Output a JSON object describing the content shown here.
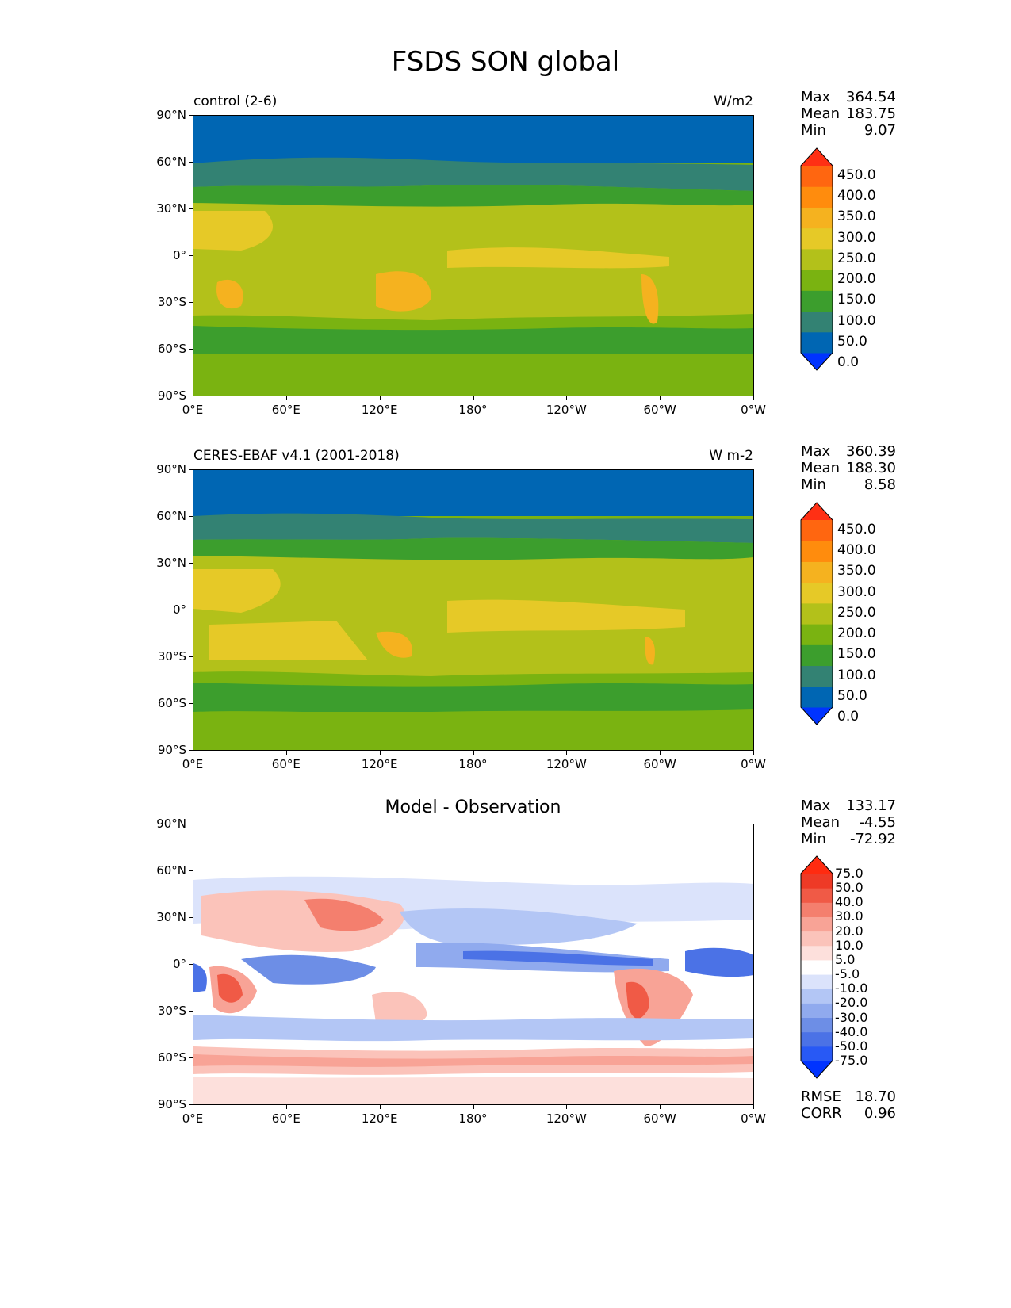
{
  "title": "FSDS SON global",
  "lat_ticks": [
    "90°N",
    "60°N",
    "30°N",
    "0°",
    "30°S",
    "60°S",
    "90°S"
  ],
  "lon_ticks": [
    "0°E",
    "60°E",
    "120°E",
    "180°",
    "120°W",
    "60°W",
    "0°W"
  ],
  "panels": [
    {
      "title_left": "control (2-6)",
      "title_right": "W/m2",
      "stats": [
        {
          "label": "Max",
          "value": "364.54"
        },
        {
          "label": "Mean",
          "value": "183.75"
        },
        {
          "label": "Min",
          "value": "9.07"
        }
      ],
      "colorbar_labels": [
        "450.0",
        "400.0",
        "350.0",
        "300.0",
        "250.0",
        "200.0",
        "150.0",
        "100.0",
        "50.0",
        "0.0"
      ]
    },
    {
      "title_left": "CERES-EBAF v4.1 (2001-2018)",
      "title_right": "W m-2",
      "stats": [
        {
          "label": "Max",
          "value": "360.39"
        },
        {
          "label": "Mean",
          "value": "188.30"
        },
        {
          "label": "Min",
          "value": "8.58"
        }
      ],
      "colorbar_labels": [
        "450.0",
        "400.0",
        "350.0",
        "300.0",
        "250.0",
        "200.0",
        "150.0",
        "100.0",
        "50.0",
        "0.0"
      ]
    },
    {
      "title_center": "Model - Observation",
      "stats": [
        {
          "label": "Max",
          "value": "133.17"
        },
        {
          "label": "Mean",
          "value": "-4.55"
        },
        {
          "label": "Min",
          "value": "-72.92"
        }
      ],
      "colorbar_labels": [
        "75.0",
        "50.0",
        "40.0",
        "30.0",
        "20.0",
        "10.0",
        "5.0",
        "-5.0",
        "-10.0",
        "-20.0",
        "-30.0",
        "-40.0",
        "-50.0",
        "-75.0"
      ],
      "metrics": [
        {
          "label": "RMSE",
          "value": "18.70"
        },
        {
          "label": "CORR",
          "value": "0.96"
        }
      ]
    }
  ],
  "colors": {
    "abs_scale": [
      "#0033ff",
      "#0066b3",
      "#338273",
      "#3c9e2d",
      "#7ab311",
      "#b3c11a",
      "#e6c927",
      "#f5b21f",
      "#ff8c0d",
      "#ff6610",
      "#ff3014"
    ],
    "diff_scale": [
      "#0033ff",
      "#2859f5",
      "#4b72e6",
      "#6d8ee6",
      "#90aaee",
      "#b3c6f5",
      "#dbe3fb",
      "#ffffff",
      "#fde0dc",
      "#fbc3ba",
      "#f8a396",
      "#f47f6e",
      "#f05a46",
      "#ee3a26",
      "#ff2b10"
    ]
  }
}
